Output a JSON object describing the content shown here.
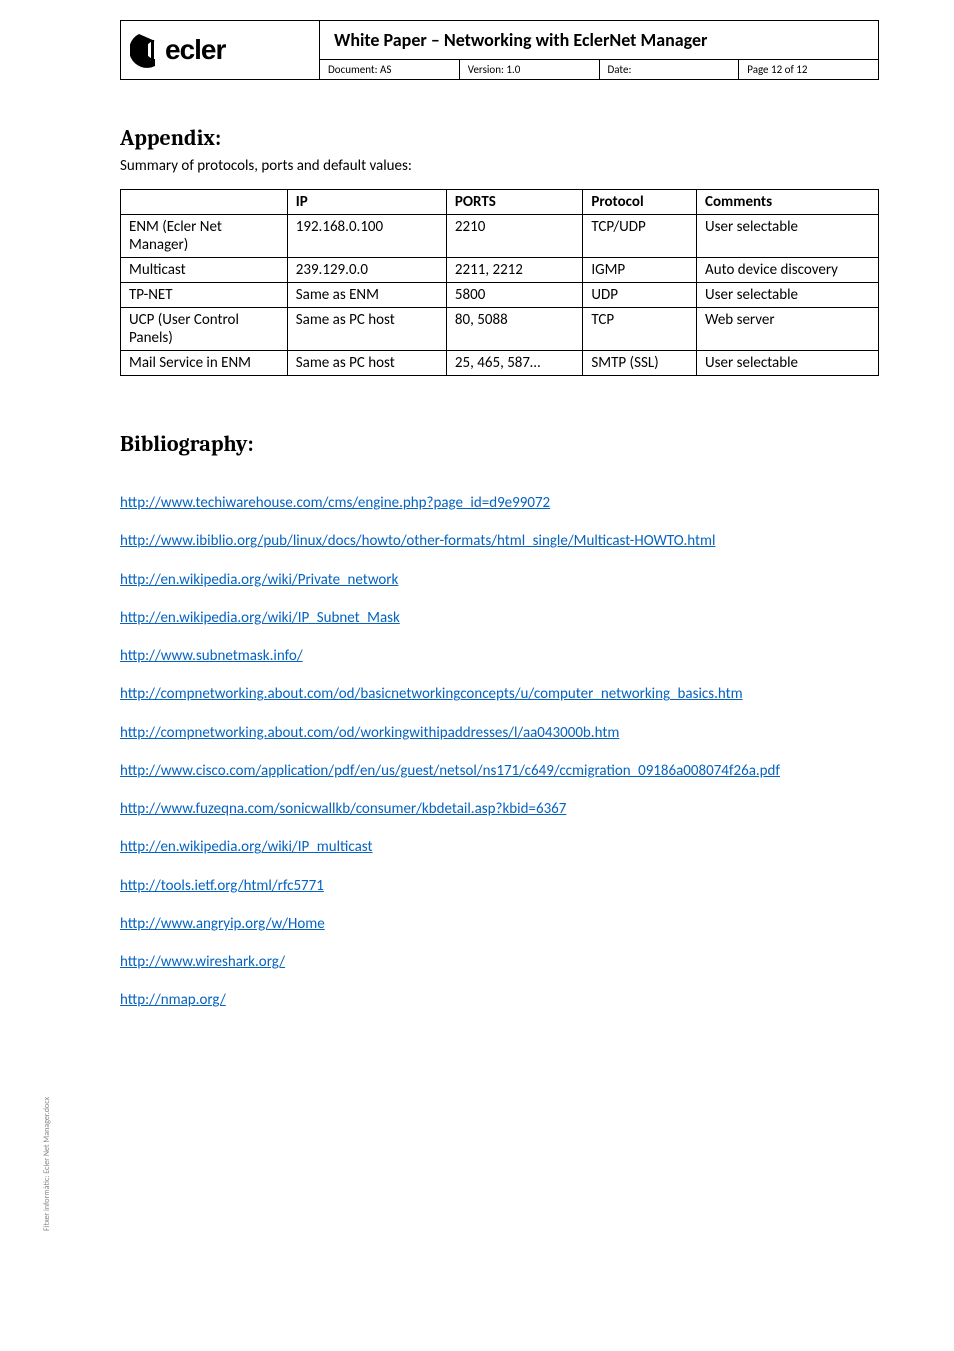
{
  "header": {
    "title": "White Paper – Networking with EclerNet Manager",
    "meta": {
      "document": "Document:  AS",
      "version": "Version:  1.0",
      "date": "Date:",
      "page": "Page 12 of 12"
    }
  },
  "appendix": {
    "heading": "Appendix:",
    "summary": "Summary of protocols, ports and default values:"
  },
  "table": {
    "headers": [
      "",
      "IP",
      "PORTS",
      "Protocol",
      "Comments"
    ],
    "rows": [
      [
        "ENM (Ecler Net Manager)",
        "192.168.0.100",
        "2210",
        "TCP/UDP",
        "User selectable"
      ],
      [
        "Multicast",
        "239.129.0.0",
        "2211, 2212",
        "IGMP",
        "Auto device discovery"
      ],
      [
        "TP-NET",
        "Same as ENM",
        "5800",
        "UDP",
        "User selectable"
      ],
      [
        "UCP (User Control Panels)",
        "Same as PC host",
        "80, 5088",
        "TCP",
        "Web server"
      ],
      [
        "Mail Service in ENM",
        "Same as PC host",
        "25, 465, 587…",
        "SMTP (SSL)",
        "User selectable"
      ]
    ],
    "col_widths": [
      "22%",
      "21%",
      "18%",
      "15%",
      "24%"
    ]
  },
  "biblio": {
    "heading": "Bibliography:",
    "links": [
      "http://www.techiwarehouse.com/cms/engine.php?page_id=d9e99072",
      "http://www.ibiblio.org/pub/linux/docs/howto/other-formats/html_single/Multicast-HOWTO.html",
      "http://en.wikipedia.org/wiki/Private_network",
      "http://en.wikipedia.org/wiki/IP_Subnet_Mask",
      "http://www.subnetmask.info/",
      "http://compnetworking.about.com/od/basicnetworkingconcepts/u/computer_networking_basics.htm",
      "http://compnetworking.about.com/od/workingwithipaddresses/l/aa043000b.htm",
      "http://www.cisco.com/application/pdf/en/us/guest/netsol/ns171/c649/ccmigration_09186a008074f26a.pdf",
      "http://www.fuzeqna.com/sonicwallkb/consumer/kbdetail.asp?kbid=6367",
      "http://en.wikipedia.org/wiki/IP_multicast",
      "http://tools.ietf.org/html/rfc5771",
      "http://www.angryip.org/w/Home",
      "http://www.wireshark.org/",
      "http://nmap.org/"
    ]
  },
  "side_text": "Fitxer informàtic:  Ecler Net Manager.docx",
  "colors": {
    "link": "#0563c1",
    "text": "#000000",
    "bg": "#ffffff",
    "side": "#888888"
  }
}
